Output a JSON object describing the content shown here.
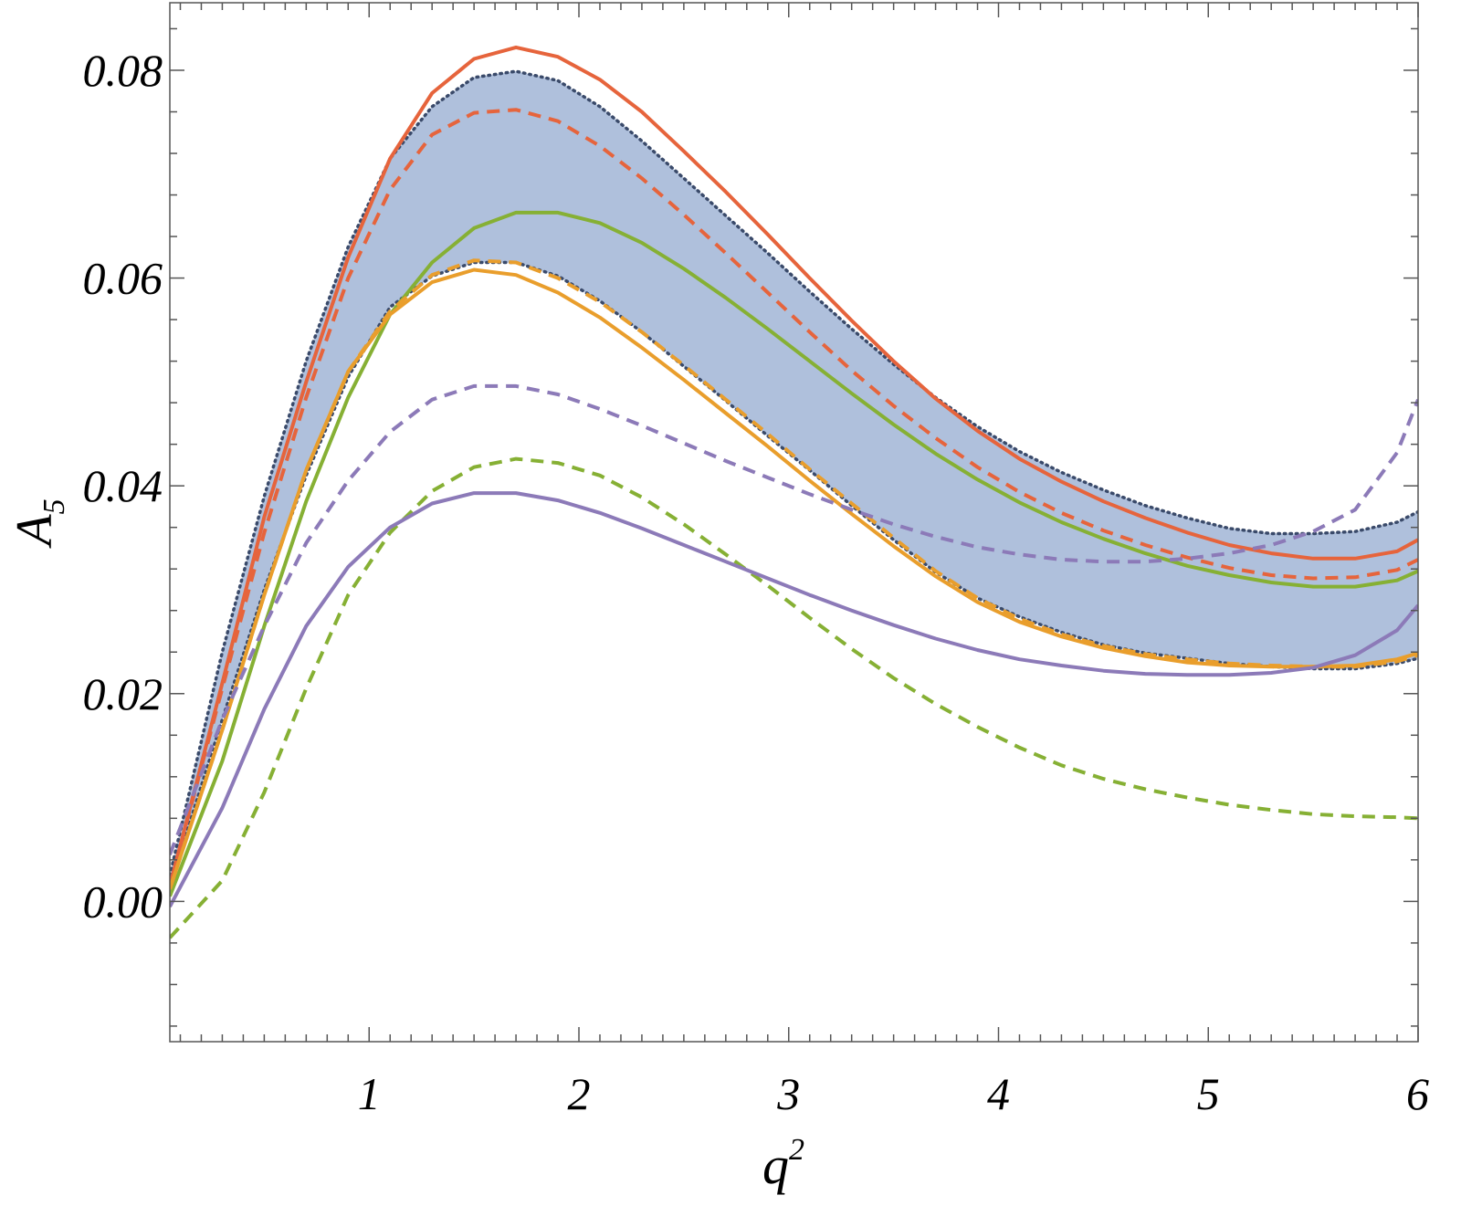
{
  "chart_data": {
    "type": "line",
    "xlabel": {
      "base": "q",
      "sup": "2"
    },
    "ylabel": {
      "base": "A",
      "sub": "5"
    },
    "xlim": [
      0.05,
      6.0
    ],
    "ylim": [
      -0.0135,
      0.0865
    ],
    "x_ticks": [
      1,
      2,
      3,
      4,
      5,
      6
    ],
    "x_tick_labels": [
      "1",
      "2",
      "3",
      "4",
      "5",
      "6"
    ],
    "y_ticks": [
      0.0,
      0.02,
      0.04,
      0.06,
      0.08
    ],
    "y_tick_labels": [
      "0.00",
      "0.02",
      "0.04",
      "0.06",
      "0.08"
    ],
    "x_minor_step": 0.1,
    "y_minor_step": 0.004,
    "grid": false,
    "band": {
      "color": "#AFC0DC",
      "border_color": "#3A4A6A",
      "style": "dotted",
      "x": [
        0.05,
        0.3,
        0.5,
        0.7,
        0.9,
        1.1,
        1.3,
        1.5,
        1.7,
        1.9,
        2.1,
        2.3,
        2.5,
        2.7,
        2.9,
        3.1,
        3.3,
        3.5,
        3.7,
        3.9,
        4.1,
        4.3,
        4.5,
        4.7,
        4.9,
        5.1,
        5.3,
        5.5,
        5.7,
        5.9,
        6.0
      ],
      "upper": [
        0.0025,
        0.024,
        0.039,
        0.052,
        0.063,
        0.0715,
        0.0765,
        0.0793,
        0.0799,
        0.079,
        0.0765,
        0.0732,
        0.0696,
        0.066,
        0.0624,
        0.0587,
        0.0551,
        0.0517,
        0.0485,
        0.0457,
        0.0433,
        0.0413,
        0.0396,
        0.0381,
        0.0369,
        0.0359,
        0.0354,
        0.0354,
        0.0356,
        0.0365,
        0.0375
      ],
      "lower": [
        0.0015,
        0.0175,
        0.03,
        0.041,
        0.0505,
        0.0572,
        0.0602,
        0.0615,
        0.0615,
        0.0602,
        0.0578,
        0.0548,
        0.0515,
        0.0482,
        0.0448,
        0.0415,
        0.0381,
        0.0348,
        0.0317,
        0.0292,
        0.0274,
        0.0259,
        0.0247,
        0.0239,
        0.0234,
        0.0229,
        0.0226,
        0.0224,
        0.0224,
        0.0229,
        0.0234
      ]
    },
    "series": [
      {
        "color": "#E6643C",
        "style": "solid",
        "x": [
          0.05,
          0.3,
          0.5,
          0.7,
          0.9,
          1.1,
          1.3,
          1.5,
          1.7,
          1.9,
          2.1,
          2.3,
          2.5,
          2.7,
          2.9,
          3.1,
          3.3,
          3.5,
          3.7,
          3.9,
          4.1,
          4.3,
          4.5,
          4.7,
          4.9,
          5.1,
          5.3,
          5.5,
          5.7,
          5.9,
          6.0
        ],
        "y": [
          0.0015,
          0.021,
          0.037,
          0.05,
          0.062,
          0.0715,
          0.0778,
          0.0811,
          0.0822,
          0.0813,
          0.0791,
          0.076,
          0.0722,
          0.0683,
          0.0642,
          0.06,
          0.0559,
          0.052,
          0.0484,
          0.0453,
          0.0426,
          0.0404,
          0.0385,
          0.0369,
          0.0355,
          0.0343,
          0.0335,
          0.033,
          0.033,
          0.0337,
          0.0348
        ]
      },
      {
        "color": "#E6643C",
        "style": "dashed",
        "x": [
          0.05,
          0.3,
          0.5,
          0.7,
          0.9,
          1.1,
          1.3,
          1.5,
          1.7,
          1.9,
          2.1,
          2.3,
          2.5,
          2.7,
          2.9,
          3.1,
          3.3,
          3.5,
          3.7,
          3.9,
          4.1,
          4.3,
          4.5,
          4.7,
          4.9,
          5.1,
          5.3,
          5.5,
          5.7,
          5.9,
          6.0
        ],
        "y": [
          0.0015,
          0.0205,
          0.0355,
          0.0485,
          0.06,
          0.0685,
          0.0738,
          0.0759,
          0.0762,
          0.0751,
          0.0727,
          0.0696,
          0.0661,
          0.0624,
          0.0586,
          0.0548,
          0.0511,
          0.0477,
          0.0446,
          0.0418,
          0.0394,
          0.0374,
          0.0357,
          0.0343,
          0.0331,
          0.0321,
          0.0314,
          0.0311,
          0.0312,
          0.0319,
          0.0329
        ]
      },
      {
        "color": "#86B034",
        "style": "solid",
        "x": [
          0.05,
          0.3,
          0.5,
          0.7,
          0.9,
          1.1,
          1.3,
          1.5,
          1.7,
          1.9,
          2.1,
          2.3,
          2.5,
          2.7,
          2.9,
          3.1,
          3.3,
          3.5,
          3.7,
          3.9,
          4.1,
          4.3,
          4.5,
          4.7,
          4.9,
          5.1,
          5.3,
          5.5,
          5.7,
          5.9,
          6.0
        ],
        "y": [
          0.0005,
          0.0135,
          0.0265,
          0.0385,
          0.0485,
          0.0565,
          0.0615,
          0.0648,
          0.0663,
          0.0663,
          0.0653,
          0.0634,
          0.0609,
          0.0581,
          0.0551,
          0.052,
          0.0489,
          0.0459,
          0.0431,
          0.0406,
          0.0384,
          0.0365,
          0.0349,
          0.0335,
          0.0323,
          0.0314,
          0.0307,
          0.0303,
          0.0303,
          0.0309,
          0.0318
        ]
      },
      {
        "color": "#86B034",
        "style": "dashed",
        "x": [
          0.05,
          0.3,
          0.5,
          0.7,
          0.9,
          1.1,
          1.3,
          1.5,
          1.7,
          1.9,
          2.1,
          2.3,
          2.5,
          2.7,
          2.9,
          3.1,
          3.3,
          3.5,
          3.7,
          3.9,
          4.1,
          4.3,
          4.5,
          4.7,
          4.9,
          5.1,
          5.3,
          5.5,
          5.7,
          5.9,
          6.0
        ],
        "y": [
          -0.0035,
          0.002,
          0.0105,
          0.0205,
          0.0295,
          0.0355,
          0.0395,
          0.0418,
          0.0426,
          0.0422,
          0.041,
          0.0389,
          0.0363,
          0.0334,
          0.0304,
          0.0273,
          0.0243,
          0.0215,
          0.019,
          0.0168,
          0.0148,
          0.0131,
          0.0118,
          0.0108,
          0.01,
          0.0093,
          0.0088,
          0.0084,
          0.0082,
          0.0081,
          0.008
        ]
      },
      {
        "color": "#E99E2C",
        "style": "solid",
        "x": [
          0.05,
          0.3,
          0.5,
          0.7,
          0.9,
          1.1,
          1.3,
          1.5,
          1.7,
          1.9,
          2.1,
          2.3,
          2.5,
          2.7,
          2.9,
          3.1,
          3.3,
          3.5,
          3.7,
          3.9,
          4.1,
          4.3,
          4.5,
          4.7,
          4.9,
          5.1,
          5.3,
          5.5,
          5.7,
          5.9,
          6.0
        ],
        "y": [
          0.0012,
          0.0165,
          0.0295,
          0.0415,
          0.051,
          0.0565,
          0.0596,
          0.0608,
          0.0603,
          0.0586,
          0.0562,
          0.0533,
          0.0502,
          0.047,
          0.0438,
          0.0405,
          0.0373,
          0.0342,
          0.0313,
          0.0288,
          0.0269,
          0.0255,
          0.0244,
          0.0236,
          0.023,
          0.0227,
          0.0226,
          0.0226,
          0.0227,
          0.0233,
          0.0239
        ]
      },
      {
        "color": "#E99E2C",
        "style": "dashed",
        "x": [
          0.05,
          0.3,
          0.5,
          0.7,
          0.9,
          1.1,
          1.3,
          1.5,
          1.7,
          1.9,
          2.1,
          2.3,
          2.5,
          2.7,
          2.9,
          3.1,
          3.3,
          3.5,
          3.7,
          3.9,
          4.1,
          4.3,
          4.5,
          4.7,
          4.9,
          5.1,
          5.3,
          5.5,
          5.7,
          5.9,
          6.0
        ],
        "y": [
          0.0012,
          0.0165,
          0.0295,
          0.0415,
          0.051,
          0.0568,
          0.0603,
          0.0617,
          0.0615,
          0.06,
          0.0577,
          0.0548,
          0.0516,
          0.0483,
          0.045,
          0.0416,
          0.0383,
          0.035,
          0.0318,
          0.0292,
          0.0272,
          0.0257,
          0.0246,
          0.0238,
          0.0233,
          0.0229,
          0.0227,
          0.0226,
          0.0226,
          0.0231,
          0.0237
        ]
      },
      {
        "color": "#8C7AB8",
        "style": "solid",
        "x": [
          0.05,
          0.3,
          0.5,
          0.7,
          0.9,
          1.1,
          1.3,
          1.5,
          1.7,
          1.9,
          2.1,
          2.3,
          2.5,
          2.7,
          2.9,
          3.1,
          3.3,
          3.5,
          3.7,
          3.9,
          4.1,
          4.3,
          4.5,
          4.7,
          4.9,
          5.1,
          5.3,
          5.5,
          5.7,
          5.9,
          6.0
        ],
        "y": [
          -0.0005,
          0.009,
          0.0185,
          0.0265,
          0.0322,
          0.036,
          0.0383,
          0.0393,
          0.0393,
          0.0386,
          0.0374,
          0.0359,
          0.0343,
          0.0327,
          0.0311,
          0.0295,
          0.028,
          0.0266,
          0.0253,
          0.0242,
          0.0233,
          0.0227,
          0.0222,
          0.0219,
          0.0218,
          0.0218,
          0.022,
          0.0225,
          0.0237,
          0.0261,
          0.0285
        ]
      },
      {
        "color": "#8C7AB8",
        "style": "dashed",
        "x": [
          0.05,
          0.3,
          0.5,
          0.7,
          0.9,
          1.1,
          1.3,
          1.5,
          1.7,
          1.9,
          2.1,
          2.3,
          2.5,
          2.7,
          2.9,
          3.1,
          3.3,
          3.5,
          3.7,
          3.9,
          4.1,
          4.3,
          4.5,
          4.7,
          4.9,
          5.1,
          5.3,
          5.5,
          5.7,
          5.9,
          6.0
        ],
        "y": [
          0.0045,
          0.0175,
          0.0265,
          0.0345,
          0.0405,
          0.0452,
          0.0483,
          0.0496,
          0.0496,
          0.0488,
          0.0474,
          0.0458,
          0.0441,
          0.0424,
          0.0408,
          0.0392,
          0.0377,
          0.0363,
          0.0351,
          0.0341,
          0.0334,
          0.0329,
          0.0327,
          0.0327,
          0.033,
          0.0335,
          0.0343,
          0.0356,
          0.0377,
          0.0432,
          0.0483
        ]
      }
    ]
  }
}
